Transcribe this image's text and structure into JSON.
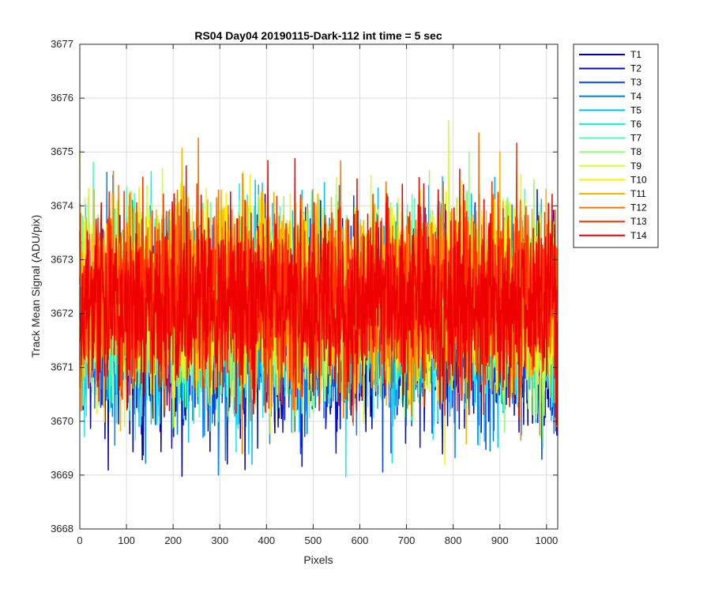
{
  "chart_data": {
    "type": "line",
    "title": "RS04 Day04 20190115-Dark-112 int time = 5 sec",
    "xlabel": "Pixels",
    "ylabel": "Track Mean Signal (ADU/pix)",
    "xlim": [
      0,
      1024
    ],
    "ylim": [
      3668,
      3677
    ],
    "xticks": [
      0,
      100,
      200,
      300,
      400,
      500,
      600,
      700,
      800,
      900,
      1000
    ],
    "yticks": [
      3668,
      3669,
      3670,
      3671,
      3672,
      3673,
      3674,
      3675,
      3676,
      3677
    ],
    "grid": true,
    "legend_position": "outside-top-right",
    "series_count_points": 1024,
    "series": [
      {
        "name": "T1",
        "color": "#0000a8",
        "mean": 3671.6,
        "std": 0.85,
        "min": 3668.2,
        "max": 3675.0
      },
      {
        "name": "T2",
        "color": "#0010d8",
        "mean": 3671.7,
        "std": 0.85,
        "min": 3668.5,
        "max": 3675.2
      },
      {
        "name": "T3",
        "color": "#0040ff",
        "mean": 3671.8,
        "std": 0.85,
        "min": 3668.8,
        "max": 3675.3
      },
      {
        "name": "T4",
        "color": "#0080ff",
        "mean": 3671.9,
        "std": 0.85,
        "min": 3669.0,
        "max": 3675.5
      },
      {
        "name": "T5",
        "color": "#00c0ff",
        "mean": 3672.0,
        "std": 0.85,
        "min": 3669.2,
        "max": 3676.4
      },
      {
        "name": "T6",
        "color": "#10f0f0",
        "mean": 3672.0,
        "std": 0.85,
        "min": 3668.7,
        "max": 3675.5
      },
      {
        "name": "T7",
        "color": "#50ffb0",
        "mean": 3672.1,
        "std": 0.85,
        "min": 3669.5,
        "max": 3675.6
      },
      {
        "name": "T8",
        "color": "#90ff70",
        "mean": 3672.2,
        "std": 0.85,
        "min": 3669.8,
        "max": 3675.8
      },
      {
        "name": "T9",
        "color": "#d0ff30",
        "mean": 3672.3,
        "std": 0.85,
        "min": 3669.9,
        "max": 3676.0
      },
      {
        "name": "T10",
        "color": "#ffef00",
        "mean": 3672.3,
        "std": 0.85,
        "min": 3669.2,
        "max": 3676.2
      },
      {
        "name": "T11",
        "color": "#ffb000",
        "mean": 3672.3,
        "std": 0.85,
        "min": 3669.0,
        "max": 3675.6
      },
      {
        "name": "T12",
        "color": "#ff7000",
        "mean": 3672.3,
        "std": 0.85,
        "min": 3669.3,
        "max": 3675.4
      },
      {
        "name": "T13",
        "color": "#ff3000",
        "mean": 3672.3,
        "std": 0.85,
        "min": 3669.5,
        "max": 3675.5
      },
      {
        "name": "T14",
        "color": "#ee0000",
        "mean": 3672.2,
        "std": 0.85,
        "min": 3669.0,
        "max": 3675.8
      }
    ]
  }
}
